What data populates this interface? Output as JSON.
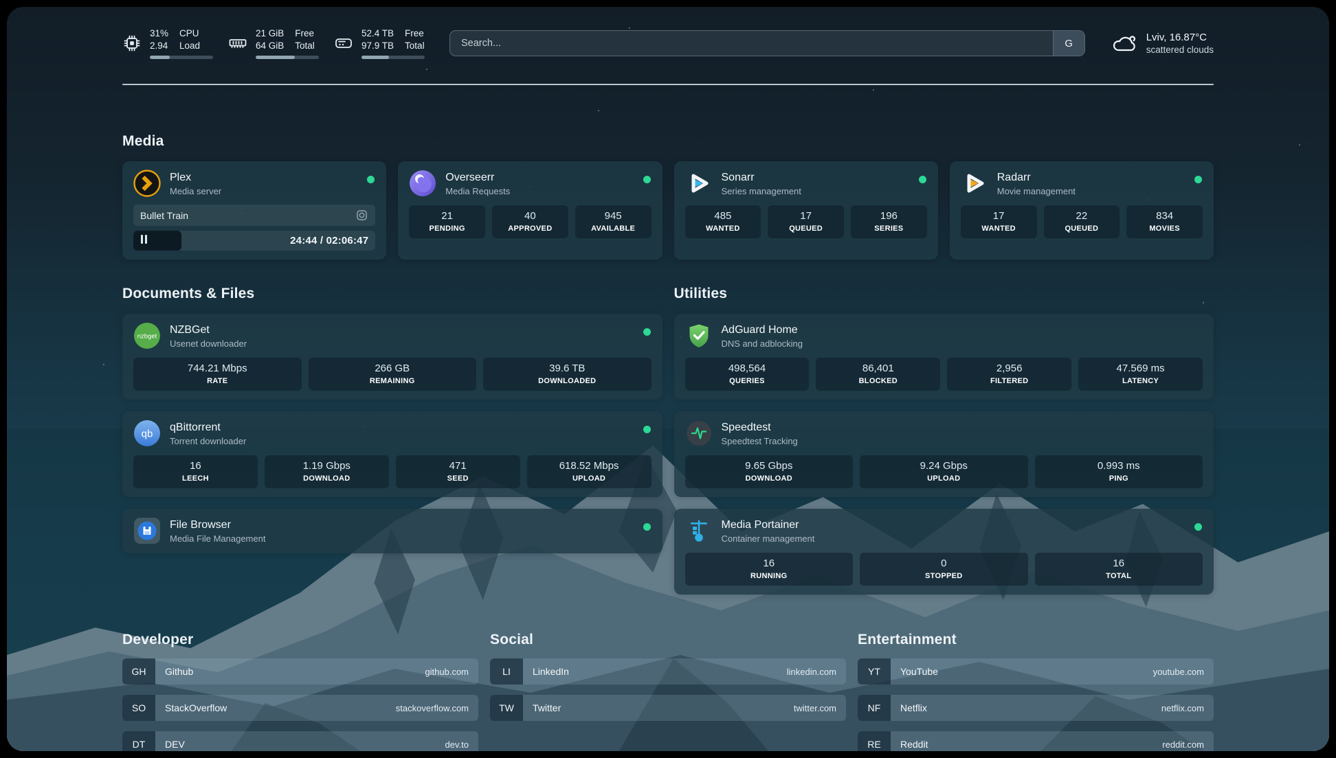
{
  "colors": {
    "accent_green": "#2dd995",
    "progress_fill": "#93a7b2",
    "card_bg": "#1f3a46"
  },
  "topbar": {
    "cpu": {
      "line1_left": "31%",
      "line2_left": "2.94",
      "line1_right": "CPU",
      "line2_right": "Load",
      "progress": 31
    },
    "memory": {
      "line1_left": "21 GiB",
      "line2_left": "64 GiB",
      "line1_right": "Free",
      "line2_right": "Total",
      "progress": 62
    },
    "disk": {
      "line1_left": "52.4 TB",
      "line2_left": "97.9 TB",
      "line1_right": "Free",
      "line2_right": "Total",
      "progress": 44
    },
    "search": {
      "placeholder": "Search...",
      "provider_button": "G"
    },
    "weather": {
      "location": "Lviv, 16.87°C",
      "condition": "scattered clouds"
    }
  },
  "media": {
    "title": "Media",
    "plex": {
      "name": "Plex",
      "desc": "Media server",
      "now_playing": "Bullet Train",
      "progress": 20,
      "time": "24:44 / 02:06:47"
    },
    "overseerr": {
      "name": "Overseerr",
      "desc": "Media Requests",
      "stats": [
        {
          "value": "21",
          "label": "PENDING"
        },
        {
          "value": "40",
          "label": "APPROVED"
        },
        {
          "value": "945",
          "label": "AVAILABLE"
        }
      ]
    },
    "sonarr": {
      "name": "Sonarr",
      "desc": "Series management",
      "stats": [
        {
          "value": "485",
          "label": "WANTED"
        },
        {
          "value": "17",
          "label": "QUEUED"
        },
        {
          "value": "196",
          "label": "SERIES"
        }
      ]
    },
    "radarr": {
      "name": "Radarr",
      "desc": "Movie management",
      "stats": [
        {
          "value": "17",
          "label": "WANTED"
        },
        {
          "value": "22",
          "label": "QUEUED"
        },
        {
          "value": "834",
          "label": "MOVIES"
        }
      ]
    }
  },
  "files": {
    "title": "Documents & Files",
    "nzbget": {
      "name": "NZBGet",
      "desc": "Usenet downloader",
      "stats": [
        {
          "value": "744.21 Mbps",
          "label": "RATE"
        },
        {
          "value": "266 GB",
          "label": "REMAINING"
        },
        {
          "value": "39.6 TB",
          "label": "DOWNLOADED"
        }
      ]
    },
    "qbittorrent": {
      "name": "qBittorrent",
      "desc": "Torrent downloader",
      "stats": [
        {
          "value": "16",
          "label": "LEECH"
        },
        {
          "value": "1.19 Gbps",
          "label": "DOWNLOAD"
        },
        {
          "value": "471",
          "label": "SEED"
        },
        {
          "value": "618.52 Mbps",
          "label": "UPLOAD"
        }
      ]
    },
    "filebrowser": {
      "name": "File Browser",
      "desc": "Media File Management"
    }
  },
  "utilities": {
    "title": "Utilities",
    "adguard": {
      "name": "AdGuard Home",
      "desc": "DNS and adblocking",
      "stats": [
        {
          "value": "498,564",
          "label": "QUERIES"
        },
        {
          "value": "86,401",
          "label": "BLOCKED"
        },
        {
          "value": "2,956",
          "label": "FILTERED"
        },
        {
          "value": "47.569 ms",
          "label": "LATENCY"
        }
      ]
    },
    "speedtest": {
      "name": "Speedtest",
      "desc": "Speedtest Tracking",
      "stats": [
        {
          "value": "9.65 Gbps",
          "label": "DOWNLOAD"
        },
        {
          "value": "9.24 Gbps",
          "label": "UPLOAD"
        },
        {
          "value": "0.993 ms",
          "label": "PING"
        }
      ]
    },
    "portainer": {
      "name": "Media Portainer",
      "desc": "Container management",
      "stats": [
        {
          "value": "16",
          "label": "RUNNING"
        },
        {
          "value": "0",
          "label": "STOPPED"
        },
        {
          "value": "16",
          "label": "TOTAL"
        }
      ]
    }
  },
  "bookmarks": {
    "developer": {
      "title": "Developer",
      "items": [
        {
          "abbr": "GH",
          "name": "Github",
          "url": "github.com"
        },
        {
          "abbr": "SO",
          "name": "StackOverflow",
          "url": "stackoverflow.com"
        },
        {
          "abbr": "DT",
          "name": "DEV",
          "url": "dev.to"
        }
      ]
    },
    "social": {
      "title": "Social",
      "items": [
        {
          "abbr": "LI",
          "name": "LinkedIn",
          "url": "linkedin.com"
        },
        {
          "abbr": "TW",
          "name": "Twitter",
          "url": "twitter.com"
        }
      ]
    },
    "entertainment": {
      "title": "Entertainment",
      "items": [
        {
          "abbr": "YT",
          "name": "YouTube",
          "url": "youtube.com"
        },
        {
          "abbr": "NF",
          "name": "Netflix",
          "url": "netflix.com"
        },
        {
          "abbr": "RE",
          "name": "Reddit",
          "url": "reddit.com"
        }
      ]
    }
  }
}
